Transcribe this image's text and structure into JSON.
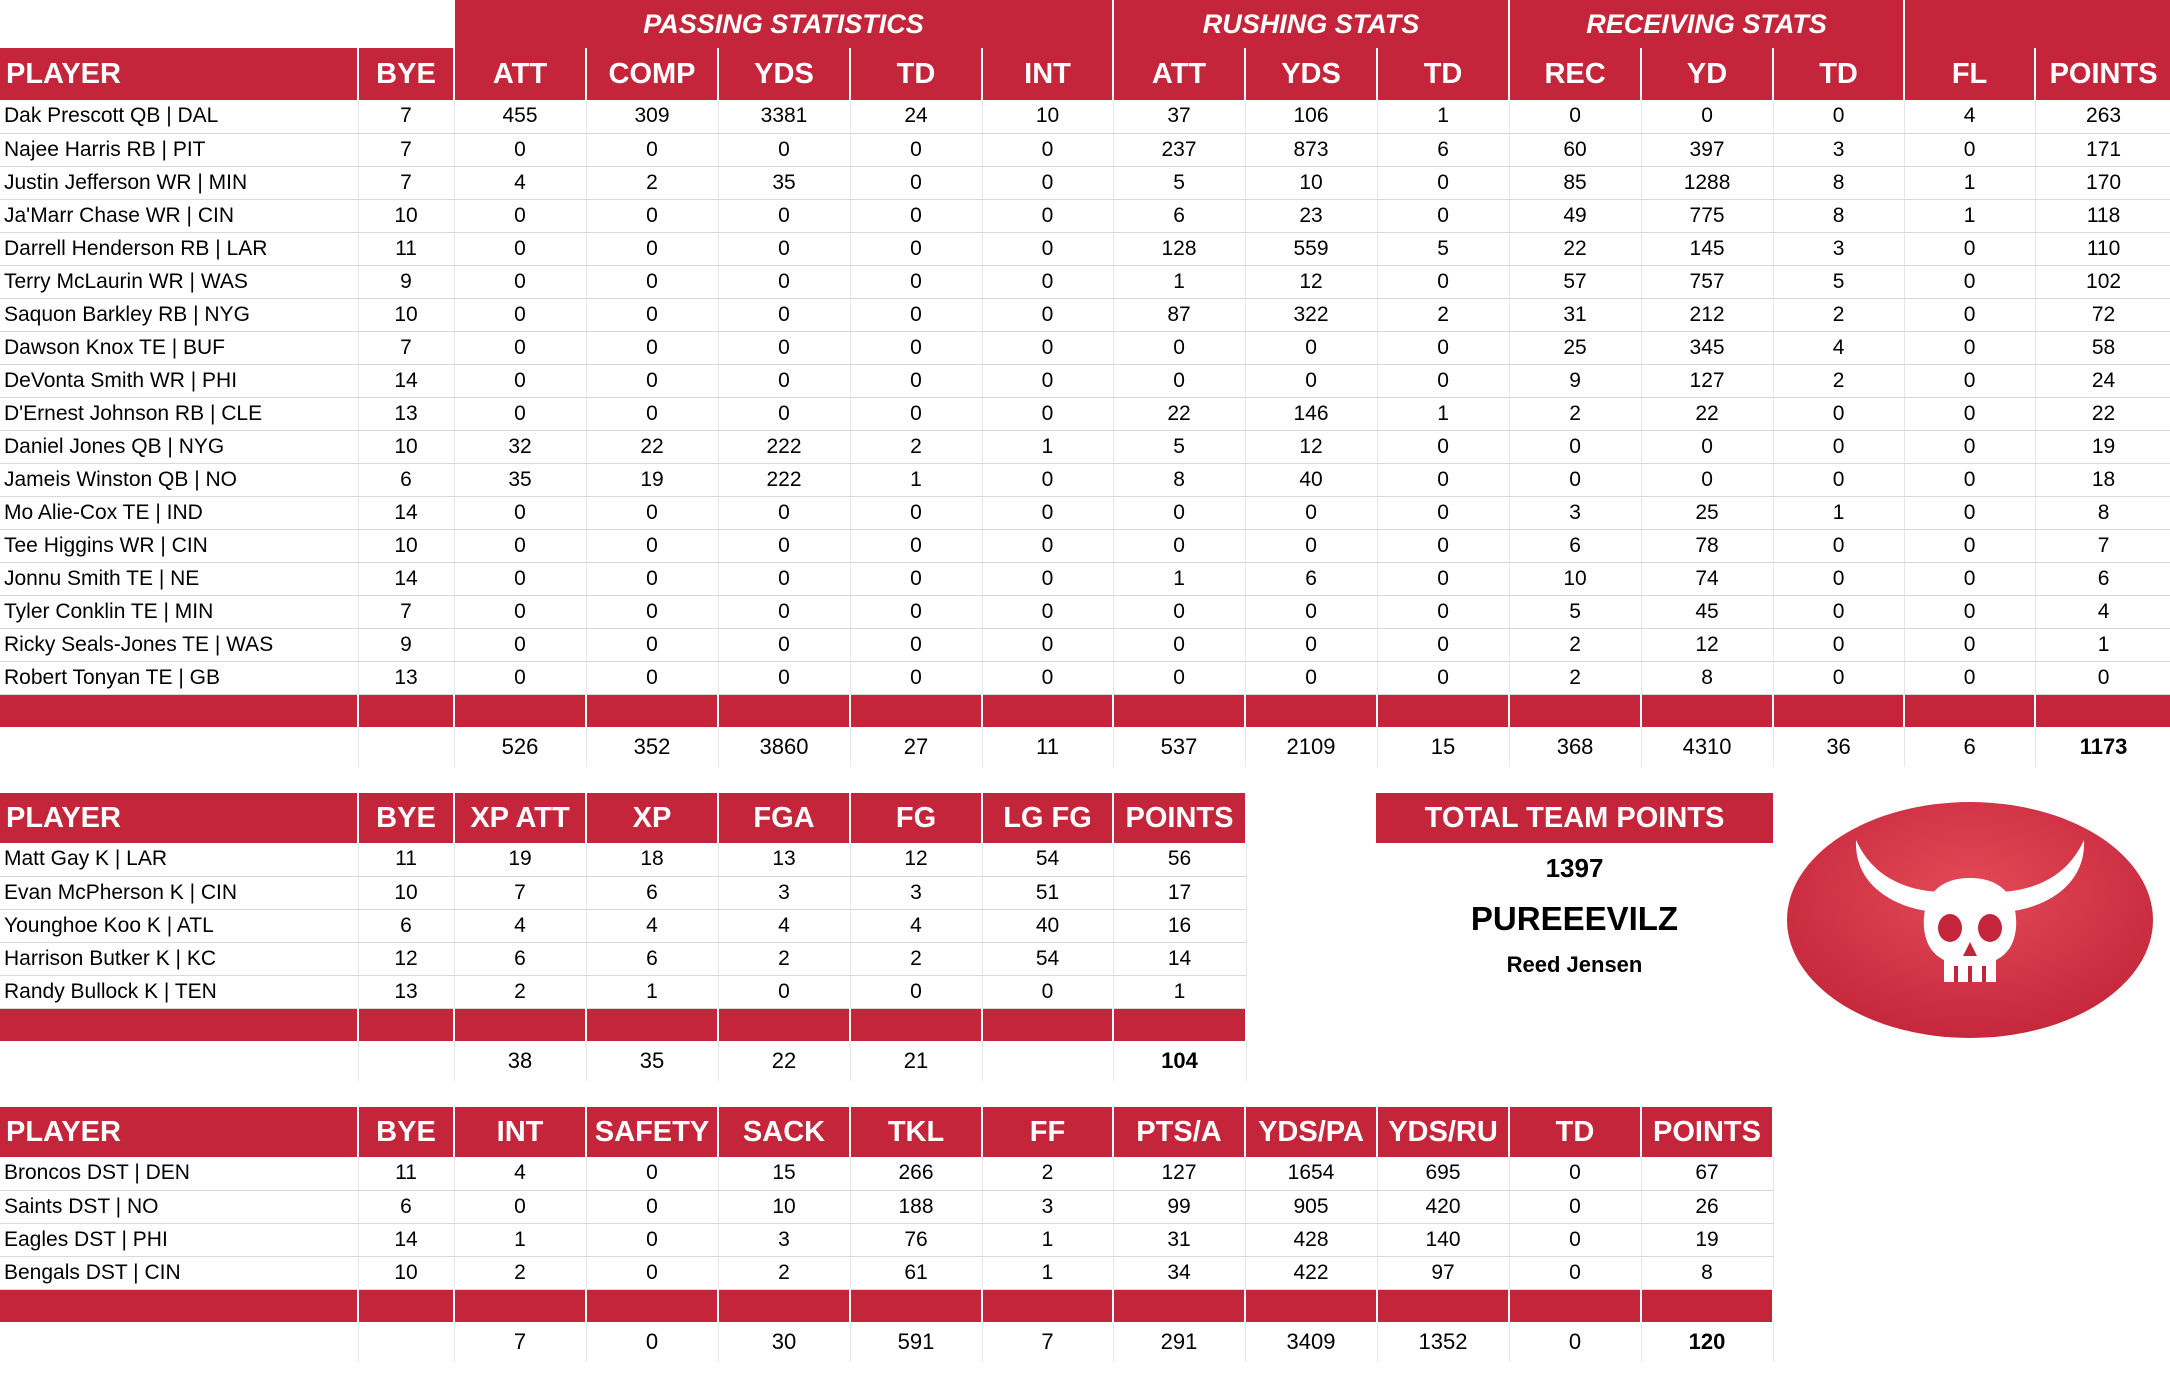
{
  "main": {
    "groups": [
      "PASSING STATISTICS",
      "RUSHING STATS",
      "RECEIVING STATS"
    ],
    "headers": [
      "PLAYER",
      "BYE",
      "ATT",
      "COMP",
      "YDS",
      "TD",
      "INT",
      "ATT",
      "YDS",
      "TD",
      "REC",
      "YD",
      "TD",
      "FL",
      "POINTS"
    ],
    "rows": [
      [
        "Dak Prescott QB | DAL",
        "7",
        "455",
        "309",
        "3381",
        "24",
        "10",
        "37",
        "106",
        "1",
        "0",
        "0",
        "0",
        "4",
        "263"
      ],
      [
        "Najee Harris RB | PIT",
        "7",
        "0",
        "0",
        "0",
        "0",
        "0",
        "237",
        "873",
        "6",
        "60",
        "397",
        "3",
        "0",
        "171"
      ],
      [
        "Justin Jefferson WR | MIN",
        "7",
        "4",
        "2",
        "35",
        "0",
        "0",
        "5",
        "10",
        "0",
        "85",
        "1288",
        "8",
        "1",
        "170"
      ],
      [
        "Ja'Marr Chase WR | CIN",
        "10",
        "0",
        "0",
        "0",
        "0",
        "0",
        "6",
        "23",
        "0",
        "49",
        "775",
        "8",
        "1",
        "118"
      ],
      [
        "Darrell Henderson RB | LAR",
        "11",
        "0",
        "0",
        "0",
        "0",
        "0",
        "128",
        "559",
        "5",
        "22",
        "145",
        "3",
        "0",
        "110"
      ],
      [
        "Terry McLaurin WR | WAS",
        "9",
        "0",
        "0",
        "0",
        "0",
        "0",
        "1",
        "12",
        "0",
        "57",
        "757",
        "5",
        "0",
        "102"
      ],
      [
        "Saquon Barkley RB | NYG",
        "10",
        "0",
        "0",
        "0",
        "0",
        "0",
        "87",
        "322",
        "2",
        "31",
        "212",
        "2",
        "0",
        "72"
      ],
      [
        "Dawson Knox TE | BUF",
        "7",
        "0",
        "0",
        "0",
        "0",
        "0",
        "0",
        "0",
        "0",
        "25",
        "345",
        "4",
        "0",
        "58"
      ],
      [
        "DeVonta Smith WR | PHI",
        "14",
        "0",
        "0",
        "0",
        "0",
        "0",
        "0",
        "0",
        "0",
        "9",
        "127",
        "2",
        "0",
        "24"
      ],
      [
        "D'Ernest Johnson RB | CLE",
        "13",
        "0",
        "0",
        "0",
        "0",
        "0",
        "22",
        "146",
        "1",
        "2",
        "22",
        "0",
        "0",
        "22"
      ],
      [
        "Daniel Jones QB | NYG",
        "10",
        "32",
        "22",
        "222",
        "2",
        "1",
        "5",
        "12",
        "0",
        "0",
        "0",
        "0",
        "0",
        "19"
      ],
      [
        "Jameis Winston QB | NO",
        "6",
        "35",
        "19",
        "222",
        "1",
        "0",
        "8",
        "40",
        "0",
        "0",
        "0",
        "0",
        "0",
        "18"
      ],
      [
        "Mo Alie-Cox TE | IND",
        "14",
        "0",
        "0",
        "0",
        "0",
        "0",
        "0",
        "0",
        "0",
        "3",
        "25",
        "1",
        "0",
        "8"
      ],
      [
        "Tee Higgins WR | CIN",
        "10",
        "0",
        "0",
        "0",
        "0",
        "0",
        "0",
        "0",
        "0",
        "6",
        "78",
        "0",
        "0",
        "7"
      ],
      [
        "Jonnu Smith TE | NE",
        "14",
        "0",
        "0",
        "0",
        "0",
        "0",
        "1",
        "6",
        "0",
        "10",
        "74",
        "0",
        "0",
        "6"
      ],
      [
        "Tyler Conklin TE | MIN",
        "7",
        "0",
        "0",
        "0",
        "0",
        "0",
        "0",
        "0",
        "0",
        "5",
        "45",
        "0",
        "0",
        "4"
      ],
      [
        "Ricky Seals-Jones TE | WAS",
        "9",
        "0",
        "0",
        "0",
        "0",
        "0",
        "0",
        "0",
        "0",
        "2",
        "12",
        "0",
        "0",
        "1"
      ],
      [
        "Robert Tonyan TE | GB",
        "13",
        "0",
        "0",
        "0",
        "0",
        "0",
        "0",
        "0",
        "0",
        "2",
        "8",
        "0",
        "0",
        "0"
      ]
    ],
    "totals": [
      "",
      "",
      "526",
      "352",
      "3860",
      "27",
      "11",
      "537",
      "2109",
      "15",
      "368",
      "4310",
      "36",
      "6",
      "1173"
    ]
  },
  "kickers": {
    "headers": [
      "PLAYER",
      "BYE",
      "XP ATT",
      "XP",
      "FGA",
      "FG",
      "LG FG",
      "POINTS"
    ],
    "rows": [
      [
        "Matt Gay K | LAR",
        "11",
        "19",
        "18",
        "13",
        "12",
        "54",
        "56"
      ],
      [
        "Evan McPherson K | CIN",
        "10",
        "7",
        "6",
        "3",
        "3",
        "51",
        "17"
      ],
      [
        "Younghoe Koo K | ATL",
        "6",
        "4",
        "4",
        "4",
        "4",
        "40",
        "16"
      ],
      [
        "Harrison Butker K | KC",
        "12",
        "6",
        "6",
        "2",
        "2",
        "54",
        "14"
      ],
      [
        "Randy Bullock K | TEN",
        "13",
        "2",
        "1",
        "0",
        "0",
        "0",
        "1"
      ]
    ],
    "totals": [
      "",
      "",
      "38",
      "35",
      "22",
      "21",
      "",
      "104"
    ]
  },
  "defense": {
    "headers": [
      "PLAYER",
      "BYE",
      "INT",
      "SAFETY",
      "SACK",
      "TKL",
      "FF",
      "PTS/A",
      "YDS/PA",
      "YDS/RU",
      "TD",
      "POINTS"
    ],
    "rows": [
      [
        "Broncos DST | DEN",
        "11",
        "4",
        "0",
        "15",
        "266",
        "2",
        "127",
        "1654",
        "695",
        "0",
        "67"
      ],
      [
        "Saints DST | NO",
        "6",
        "0",
        "0",
        "10",
        "188",
        "3",
        "99",
        "905",
        "420",
        "0",
        "26"
      ],
      [
        "Eagles DST | PHI",
        "14",
        "1",
        "0",
        "3",
        "76",
        "1",
        "31",
        "428",
        "140",
        "0",
        "19"
      ],
      [
        "Bengals DST | CIN",
        "10",
        "2",
        "0",
        "2",
        "61",
        "1",
        "34",
        "422",
        "97",
        "0",
        "8"
      ]
    ],
    "totals": [
      "",
      "",
      "7",
      "0",
      "30",
      "591",
      "7",
      "291",
      "3409",
      "1352",
      "0",
      "120"
    ]
  },
  "summary": {
    "label": "TOTAL TEAM POINTS",
    "points": "1397",
    "team_name": "PUREEEVILZ",
    "owner": "Reed Jensen"
  },
  "logo": {
    "icon": "horned-skull-icon",
    "color": "#c4253a"
  },
  "colors": {
    "header": "#c4253a"
  }
}
